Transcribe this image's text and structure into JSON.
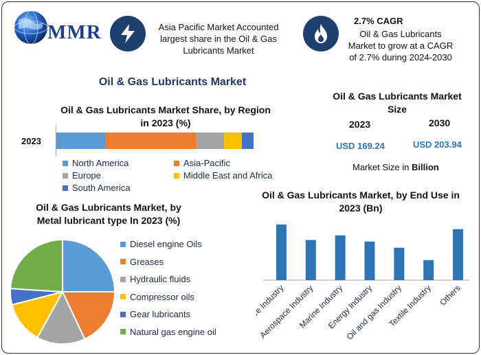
{
  "logo": {
    "text": "MMR"
  },
  "header": {
    "card1_text": "Asia Pacific Market Accounted largest share in the Oil & Gas Lubricants Market",
    "card2_title": "2.7% CAGR",
    "card2_text": "Oil & Gas Lubricants Market to grow at a CAGR of 2.7% during 2024-2030"
  },
  "main_title": "Oil & Gas Lubricants Market",
  "market_size": {
    "title": "Oil & Gas Lubricants Market Size",
    "year1": "2023",
    "year2": "2030",
    "value1": "USD 169.24",
    "value2": "USD 203.94",
    "note_prefix": "Market Size in ",
    "note_bold": "Billion"
  },
  "colors": {
    "accent": "#1f3864",
    "blue": "#5b9bd5",
    "orange": "#ed7d31",
    "gray": "#a5a5a5",
    "yellow": "#ffc000",
    "darkblue": "#4472c4",
    "green": "#70ad47",
    "bar_blue": "#2e75b6"
  },
  "icons": [
    "globe-logo-icon",
    "lightning-icon",
    "flame-icon"
  ],
  "chart_data": [
    {
      "type": "bar",
      "orientation": "horizontal-stacked",
      "title": "Oil & Gas Lubricants Market Share, by Region in 2023 (%)",
      "categories": [
        "2023"
      ],
      "series": [
        {
          "name": "North America",
          "values": [
            25
          ],
          "color": "#5b9bd5"
        },
        {
          "name": "Asia-Pacific",
          "values": [
            46
          ],
          "color": "#ed7d31"
        },
        {
          "name": "Europe",
          "values": [
            14
          ],
          "color": "#a5a5a5"
        },
        {
          "name": "Middle East and Africa",
          "values": [
            9
          ],
          "color": "#ffc000"
        },
        {
          "name": "South America",
          "values": [
            6
          ],
          "color": "#4472c4"
        }
      ],
      "legend_position": "bottom"
    },
    {
      "type": "pie",
      "title": "Oil & Gas Lubricants Market, by Metal lubricant type In 2023 (%)",
      "categories": [
        "Diesel engine Oils",
        "Greases",
        "Hydraulic fluids",
        "Compressor oils",
        "Gear lubricants",
        "Natural gas engine oil"
      ],
      "values": [
        25,
        18,
        15,
        13,
        5,
        24
      ],
      "colors": [
        "#5b9bd5",
        "#ed7d31",
        "#a5a5a5",
        "#ffc000",
        "#4472c4",
        "#70ad47"
      ],
      "legend_position": "right"
    },
    {
      "type": "bar",
      "title": "Oil & Gas Lubricants Market, by End Use in 2023 (Bn)",
      "categories": [
        "Automotive Industry",
        "Aerospace Industry",
        "Marine Industry",
        "Energy Industry",
        "Oil and gas Industry",
        "Textile Industry",
        "Others"
      ],
      "values": [
        36,
        26,
        29,
        25,
        21,
        13,
        33
      ],
      "ylim": [
        0,
        40
      ],
      "color": "#2e75b6",
      "grid": false
    }
  ]
}
